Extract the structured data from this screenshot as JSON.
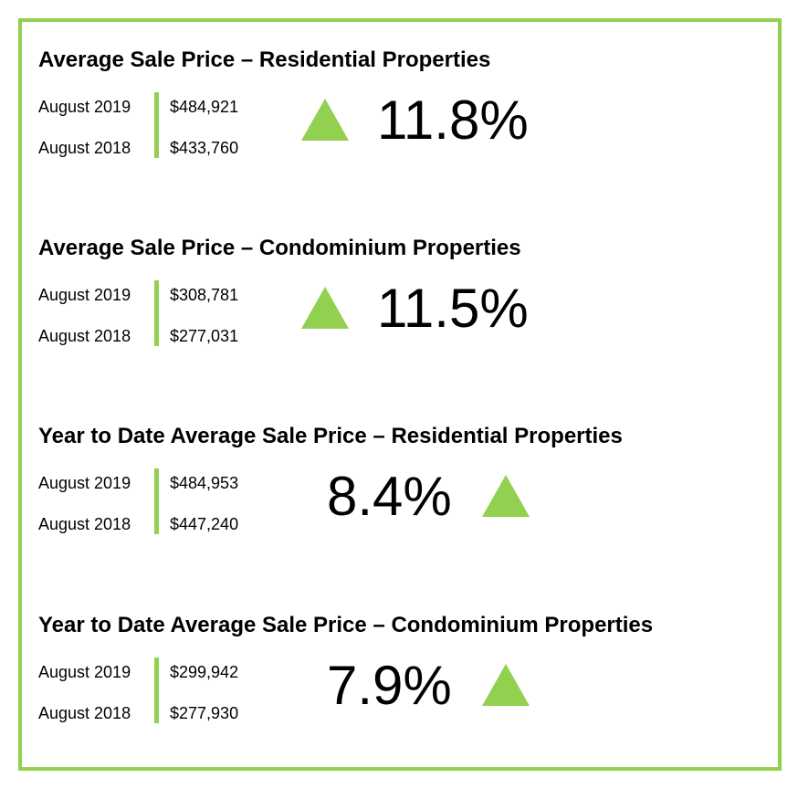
{
  "sections": [
    {
      "title": "Average Sale Price – Residential Properties",
      "rows": [
        {
          "label": "August 2019",
          "value": "$484,921"
        },
        {
          "label": "August 2018",
          "value": "$433,760"
        }
      ],
      "change": "11.8%"
    },
    {
      "title": "Average Sale Price – Condominium Properties",
      "rows": [
        {
          "label": "August 2019",
          "value": "$308,781"
        },
        {
          "label": "August 2018",
          "value": "$277,031"
        }
      ],
      "change": "11.5%"
    },
    {
      "title": "Year to Date Average Sale Price – Residential Properties",
      "rows": [
        {
          "label": "August 2019",
          "value": "$484,953"
        },
        {
          "label": "August 2018",
          "value": "$447,240"
        }
      ],
      "change": "8.4%"
    },
    {
      "title": "Year to Date Average Sale Price – Condominium Properties",
      "rows": [
        {
          "label": "August 2019",
          "value": "$299,942"
        },
        {
          "label": "August 2018",
          "value": "$277,930"
        }
      ],
      "change": "7.9%"
    }
  ]
}
